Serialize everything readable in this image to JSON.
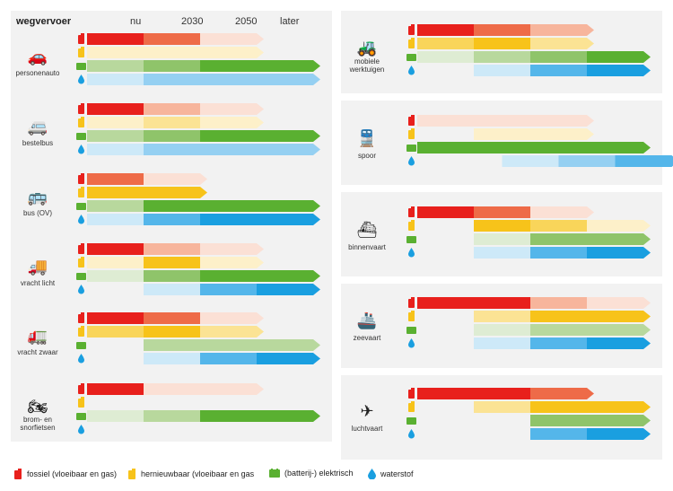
{
  "colors": {
    "fossiel": [
      "#e8201c",
      "#ee6b48",
      "#f7b59c",
      "#fbe0d5"
    ],
    "hernieuwbaar": [
      "#f7c31a",
      "#f9d55a",
      "#fbe394",
      "#fdf0c9"
    ],
    "elektrisch": [
      "#5ab031",
      "#8fc46a",
      "#b8d89d",
      "#deecd3"
    ],
    "waterstof": [
      "#1a9fe0",
      "#54b6ea",
      "#95d0f2",
      "#cde9f8"
    ]
  },
  "header": {
    "title": "wegvervoer",
    "col_nu": "nu",
    "col_2030": "2030",
    "col_2050": "2050",
    "col_later": "later"
  },
  "legend": [
    {
      "key": "fossiel",
      "label": "fossiel (vloeibaar en gas)",
      "icon": "fuel-can-icon"
    },
    {
      "key": "hernieuwbaar",
      "label": "hernieuwbaar (vloeibaar en gas",
      "icon": "fuel-can-icon"
    },
    {
      "key": "elektrisch",
      "label": "(batterij-) elektrisch",
      "icon": "battery-icon"
    },
    {
      "key": "waterstof",
      "label": "waterstof",
      "icon": "water-drop-icon"
    }
  ],
  "chart_data": {
    "type": "bar",
    "title": "wegvervoer",
    "periods": [
      "nu",
      "2030",
      "2050",
      "later"
    ],
    "carriers": [
      "fossiel",
      "hernieuwbaar",
      "elektrisch",
      "waterstof"
    ],
    "sectors": [
      {
        "id": "personenauto",
        "label": "personenauto",
        "icon": "car-icon",
        "bars": [
          {
            "carrier": "fossiel",
            "segments": [
              0,
              1,
              3
            ],
            "arrow": true
          },
          {
            "carrier": "hernieuwbaar",
            "segments": [
              3,
              3,
              3
            ],
            "arrow": true
          },
          {
            "carrier": "elektrisch",
            "segments": [
              2,
              1,
              0,
              0
            ],
            "arrow": true
          },
          {
            "carrier": "waterstof",
            "segments": [
              3,
              2,
              2,
              2
            ],
            "arrow": true
          }
        ]
      },
      {
        "id": "bestelbus",
        "label": "bestelbus",
        "icon": "van-icon",
        "bars": [
          {
            "carrier": "fossiel",
            "segments": [
              0,
              2,
              3
            ],
            "arrow": true
          },
          {
            "carrier": "hernieuwbaar",
            "segments": [
              3,
              2,
              3
            ],
            "arrow": true
          },
          {
            "carrier": "elektrisch",
            "segments": [
              2,
              1,
              0,
              0
            ],
            "arrow": true
          },
          {
            "carrier": "waterstof",
            "segments": [
              3,
              2,
              2,
              2
            ],
            "arrow": true
          }
        ]
      },
      {
        "id": "bus",
        "label": "bus (OV)",
        "icon": "bus-icon",
        "bars": [
          {
            "carrier": "fossiel",
            "segments": [
              1,
              3
            ],
            "arrow": true
          },
          {
            "carrier": "hernieuwbaar",
            "segments": [
              0,
              0
            ],
            "arrow": true
          },
          {
            "carrier": "elektrisch",
            "segments": [
              2,
              0,
              0,
              0
            ],
            "arrow": true
          },
          {
            "carrier": "waterstof",
            "segments": [
              3,
              1,
              0,
              0
            ],
            "arrow": true
          }
        ]
      },
      {
        "id": "vracht-licht",
        "label": "vracht licht",
        "icon": "light-truck-icon",
        "bars": [
          {
            "carrier": "fossiel",
            "segments": [
              0,
              2,
              3
            ],
            "arrow": true
          },
          {
            "carrier": "hernieuwbaar",
            "segments": [
              3,
              0,
              3
            ],
            "arrow": true
          },
          {
            "carrier": "elektrisch",
            "segments": [
              3,
              1,
              0,
              0
            ],
            "arrow": true
          },
          {
            "carrier": "waterstof",
            "segments": [
              null,
              3,
              1,
              0
            ],
            "arrow": true
          }
        ]
      },
      {
        "id": "vracht-zwaar",
        "label": "vracht zwaar",
        "icon": "heavy-truck-icon",
        "bars": [
          {
            "carrier": "fossiel",
            "segments": [
              0,
              1,
              3
            ],
            "arrow": true
          },
          {
            "carrier": "hernieuwbaar",
            "segments": [
              1,
              0,
              2
            ],
            "arrow": true
          },
          {
            "carrier": "elektrisch",
            "segments": [
              null,
              2,
              2,
              2
            ],
            "arrow": true
          },
          {
            "carrier": "waterstof",
            "segments": [
              null,
              3,
              1,
              0
            ],
            "arrow": true
          }
        ]
      },
      {
        "id": "brom-snorfietsen",
        "label": "brom- en snorfietsen",
        "icon": "scooter-icon",
        "bars": [
          {
            "carrier": "fossiel",
            "segments": [
              0,
              3,
              3
            ],
            "arrow": true
          },
          {
            "carrier": "hernieuwbaar",
            "segments": [],
            "arrow": false
          },
          {
            "carrier": "elektrisch",
            "segments": [
              3,
              2,
              0,
              0
            ],
            "arrow": true
          },
          {
            "carrier": "waterstof",
            "segments": [],
            "arrow": false
          }
        ]
      },
      {
        "id": "mobiele-werktuigen",
        "label": "mobiele werktuigen",
        "icon": "excavator-icon",
        "bars": [
          {
            "carrier": "fossiel",
            "segments": [
              0,
              1,
              2
            ],
            "arrow": true
          },
          {
            "carrier": "hernieuwbaar",
            "segments": [
              1,
              0,
              2
            ],
            "arrow": true
          },
          {
            "carrier": "elektrisch",
            "segments": [
              3,
              2,
              1,
              0
            ],
            "arrow": true
          },
          {
            "carrier": "waterstof",
            "segments": [
              null,
              3,
              1,
              0
            ],
            "arrow": true
          }
        ]
      },
      {
        "id": "spoor",
        "label": "spoor",
        "icon": "train-icon",
        "bars": [
          {
            "carrier": "fossiel",
            "segments": [
              3,
              3,
              3
            ],
            "arrow": true
          },
          {
            "carrier": "hernieuwbaar",
            "segments": [
              null,
              3,
              3
            ],
            "arrow": true
          },
          {
            "carrier": "elektrisch",
            "segments": [
              0,
              0,
              0,
              0
            ],
            "arrow": true
          },
          {
            "carrier": "waterstof",
            "segments": [
              null,
              3,
              2,
              1
            ],
            "arrow": true,
            "start_offset": 0.5
          }
        ]
      },
      {
        "id": "binnenvaart",
        "label": "binnenvaart",
        "icon": "river-ship-icon",
        "bars": [
          {
            "carrier": "fossiel",
            "segments": [
              0,
              1,
              3
            ],
            "arrow": true
          },
          {
            "carrier": "hernieuwbaar",
            "segments": [
              null,
              0,
              1,
              3
            ],
            "arrow": true
          },
          {
            "carrier": "elektrisch",
            "segments": [
              null,
              3,
              1,
              1
            ],
            "arrow": true
          },
          {
            "carrier": "waterstof",
            "segments": [
              null,
              3,
              1,
              0
            ],
            "arrow": true
          }
        ]
      },
      {
        "id": "zeevaart",
        "label": "zeevaart",
        "icon": "sea-ship-icon",
        "bars": [
          {
            "carrier": "fossiel",
            "segments": [
              0,
              0,
              2,
              3
            ],
            "arrow": true
          },
          {
            "carrier": "hernieuwbaar",
            "segments": [
              null,
              2,
              0,
              0
            ],
            "arrow": true
          },
          {
            "carrier": "elektrisch",
            "segments": [
              null,
              3,
              2,
              2
            ],
            "arrow": true
          },
          {
            "carrier": "waterstof",
            "segments": [
              null,
              3,
              1,
              0
            ],
            "arrow": true
          }
        ]
      },
      {
        "id": "luchtvaart",
        "label": "luchtvaart",
        "icon": "airplane-icon",
        "bars": [
          {
            "carrier": "fossiel",
            "segments": [
              0,
              0,
              1
            ],
            "arrow": true
          },
          {
            "carrier": "hernieuwbaar",
            "segments": [
              null,
              2,
              0,
              0
            ],
            "arrow": true
          },
          {
            "carrier": "elektrisch",
            "segments": [
              null,
              null,
              1,
              1
            ],
            "arrow": true
          },
          {
            "carrier": "waterstof",
            "segments": [
              null,
              null,
              1,
              0
            ],
            "arrow": true
          }
        ]
      }
    ]
  }
}
